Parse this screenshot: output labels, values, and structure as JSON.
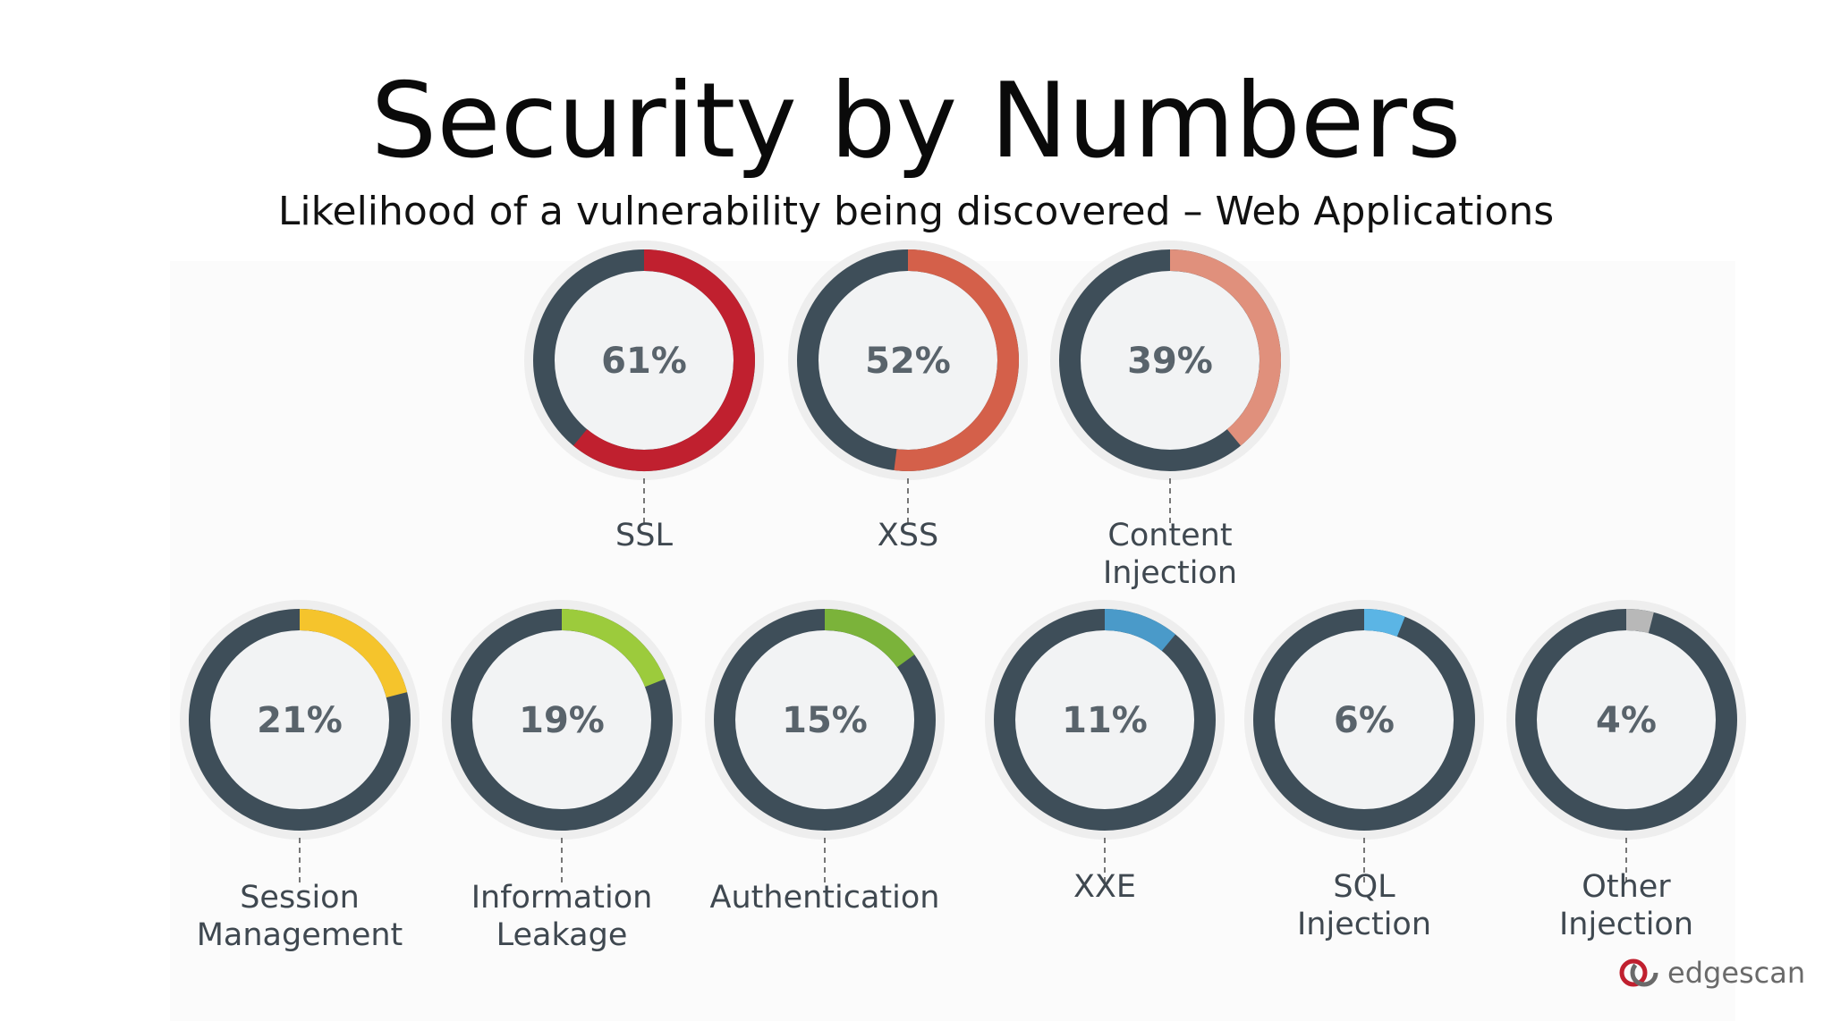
{
  "slide": {
    "title": "Security by Numbers",
    "subtitle": "Likelihood of a vulnerability being discovered – Web Applications",
    "logo_text": "edgescan"
  },
  "colors": {
    "track": "#3e4e59",
    "inner": "#f2f3f4"
  },
  "chart_data": {
    "type": "pie",
    "variant": "donut-gauges",
    "unit": "%",
    "items": [
      {
        "category": "SSL",
        "label_lines": [
          "SSL"
        ],
        "value": 61,
        "display": "61%",
        "color": "#c0202f"
      },
      {
        "category": "XSS",
        "label_lines": [
          "XSS"
        ],
        "value": 52,
        "display": "52%",
        "color": "#d4604a"
      },
      {
        "category": "Content Injection",
        "label_lines": [
          "Content",
          "Injection"
        ],
        "value": 39,
        "display": "39%",
        "color": "#e0907c"
      },
      {
        "category": "Session Management",
        "label_lines": [
          "Session",
          "Management"
        ],
        "value": 21,
        "display": "21%",
        "color": "#f5c42c"
      },
      {
        "category": "Information Leakage",
        "label_lines": [
          "Information",
          "Leakage"
        ],
        "value": 19,
        "display": "19%",
        "color": "#9ccb3c"
      },
      {
        "category": "Authentication",
        "label_lines": [
          "Authentication"
        ],
        "value": 15,
        "display": "15%",
        "color": "#7bb33a"
      },
      {
        "category": "XXE",
        "label_lines": [
          "XXE"
        ],
        "value": 11,
        "display": "11%",
        "color": "#4a9ac9"
      },
      {
        "category": "SQL Injection",
        "label_lines": [
          "SQL",
          "Injection"
        ],
        "value": 6,
        "display": "6%",
        "color": "#5bb5e5"
      },
      {
        "category": "Other Injection",
        "label_lines": [
          "Other",
          "Injection"
        ],
        "value": 4,
        "display": "4%",
        "color": "#b8b8b8"
      }
    ]
  }
}
